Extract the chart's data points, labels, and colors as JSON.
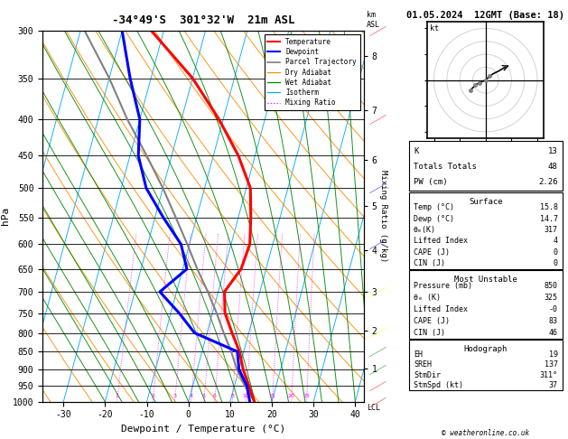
{
  "title_left": "-34°49'S  301°32'W  21m ASL",
  "title_right": "01.05.2024  12GMT (Base: 18)",
  "xlabel": "Dewpoint / Temperature (°C)",
  "ylabel_left": "hPa",
  "km_levels": [
    1,
    2,
    3,
    4,
    5,
    6,
    7,
    8
  ],
  "km_pressures": [
    898,
    795,
    700,
    611,
    530,
    456,
    388,
    326
  ],
  "temp_profile_p": [
    1000,
    950,
    900,
    850,
    800,
    750,
    700,
    650,
    600,
    550,
    500,
    450,
    400,
    350,
    300
  ],
  "temp_profile_t": [
    15.8,
    13.5,
    11.0,
    9.0,
    6.0,
    3.0,
    1.5,
    4.0,
    4.5,
    3.0,
    1.0,
    -4.0,
    -11.0,
    -20.0,
    -33.0
  ],
  "dewp_profile_p": [
    1000,
    950,
    900,
    850,
    800,
    750,
    700,
    650,
    600,
    550,
    500,
    450,
    400,
    350,
    300
  ],
  "dewp_profile_t": [
    14.7,
    13.0,
    10.0,
    8.5,
    -3.0,
    -8.0,
    -14.0,
    -9.0,
    -12.0,
    -18.0,
    -24.0,
    -28.0,
    -30.0,
    -35.0,
    -40.0
  ],
  "parcel_profile_p": [
    1000,
    950,
    900,
    850,
    800,
    750,
    700,
    650,
    600,
    550,
    500,
    450,
    400,
    350,
    300
  ],
  "parcel_profile_t": [
    15.8,
    12.5,
    9.5,
    7.0,
    4.0,
    1.0,
    -2.5,
    -6.5,
    -10.5,
    -15.0,
    -20.0,
    -26.0,
    -33.0,
    -40.0,
    -49.0
  ],
  "temp_color": "#ff0000",
  "dewp_color": "#0000ff",
  "parcel_color": "#808080",
  "dry_adiabat_color": "#ff8c00",
  "wet_adiabat_color": "#008800",
  "isotherm_color": "#00aaff",
  "mixing_ratio_color": "#ff00ff",
  "mixing_ratio_labels": [
    1,
    2,
    3,
    4,
    5,
    6,
    8,
    10,
    15,
    20,
    25
  ],
  "k_index": "13",
  "totals_totals": "48",
  "pw_cm": "2.26",
  "background_color": "#ffffff"
}
